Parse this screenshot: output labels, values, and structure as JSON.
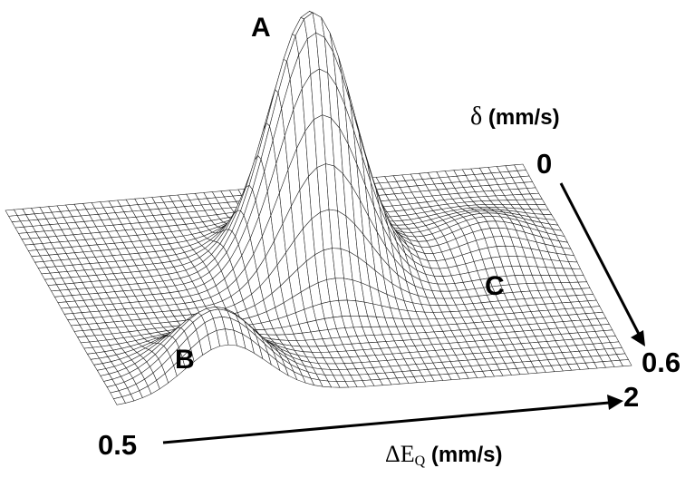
{
  "chart_data": {
    "type": "surface",
    "x_axis": {
      "symbol": "ΔE",
      "subscript": "Q",
      "unit": "(mm/s)",
      "tick_labels": [
        "0.5",
        "2"
      ],
      "range": [
        0.5,
        2
      ]
    },
    "y_axis": {
      "symbol": "δ",
      "unit": "(mm/s)",
      "tick_labels": [
        "0",
        "0.6"
      ],
      "range": [
        0,
        0.6
      ]
    },
    "peaks": [
      {
        "label": "A",
        "x": 1.25,
        "y": 0.26,
        "relative_height": 1.0
      },
      {
        "label": "B",
        "x": 0.82,
        "y": 0.55,
        "relative_height": 0.27
      },
      {
        "label": "C",
        "x": 1.78,
        "y": 0.23,
        "relative_height": 0.1
      }
    ],
    "grid": true,
    "colors": {
      "mesh_line": "#1a1a1a",
      "surface_fill": "#ffffff",
      "arrow": "#000000"
    }
  }
}
